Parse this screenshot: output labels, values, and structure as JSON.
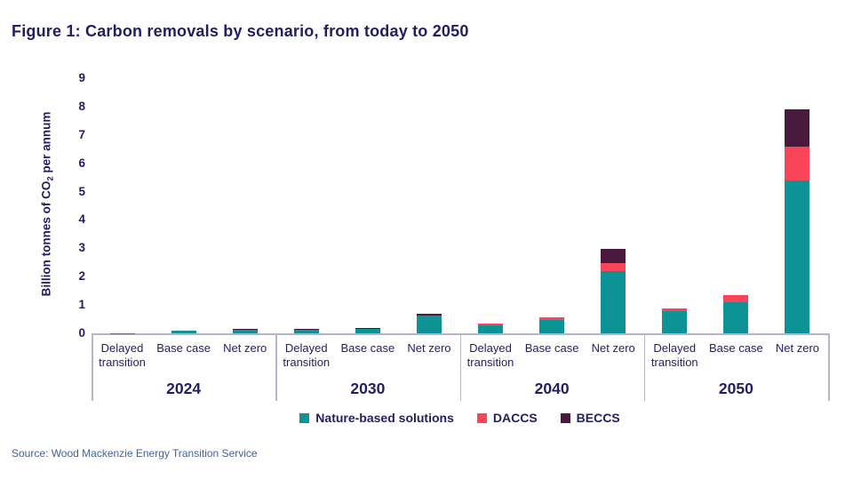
{
  "page": {
    "title": "Figure 1: Carbon removals by scenario, from today to 2050",
    "source": "Source: Wood Mackenzie Energy Transition Service"
  },
  "colors": {
    "navy": "#211e62",
    "axis_line": "#b4b4cc",
    "source_text": "#41629e",
    "nbs": "#0d9396",
    "daccs": "#f9455a",
    "beccs": "#4a1a3e"
  },
  "chart_data": {
    "type": "bar",
    "stacked": true,
    "title": "Figure 1: Carbon removals by scenario, from today to 2050",
    "ylabel": "Billion tonnes of CO2 per annum",
    "ylabel_parts": {
      "pre": "Billion tonnes of CO",
      "sub": "2",
      "post": " per annum"
    },
    "ylim": [
      0,
      9
    ],
    "yticks": [
      0,
      1,
      2,
      3,
      4,
      5,
      6,
      7,
      8,
      9
    ],
    "grid": false,
    "legend_position": "bottom",
    "values_unit": "billion tonnes of CO2 per annum",
    "series": [
      {
        "key": "nbs",
        "name": "Nature-based solutions",
        "color": "#0d9396"
      },
      {
        "key": "daccs",
        "name": "DACCS",
        "color": "#f9455a"
      },
      {
        "key": "beccs",
        "name": "BECCS",
        "color": "#4a1a3e"
      }
    ],
    "scenarios": [
      "Delayed transition",
      "Base case",
      "Net zero"
    ],
    "groups": [
      {
        "year": "2024",
        "bars": [
          {
            "scenario": "Delayed transition",
            "values": [
              0.01,
              0,
              0
            ]
          },
          {
            "scenario": "Base case",
            "values": [
              0.08,
              0,
              0
            ]
          },
          {
            "scenario": "Net zero",
            "values": [
              0.13,
              0,
              0.03
            ]
          }
        ]
      },
      {
        "year": "2030",
        "bars": [
          {
            "scenario": "Delayed transition",
            "values": [
              0.12,
              0,
              0.03
            ]
          },
          {
            "scenario": "Base case",
            "values": [
              0.15,
              0,
              0.04
            ]
          },
          {
            "scenario": "Net zero",
            "values": [
              0.63,
              0,
              0.07
            ]
          }
        ]
      },
      {
        "year": "2040",
        "bars": [
          {
            "scenario": "Delayed transition",
            "values": [
              0.27,
              0.08,
              0
            ]
          },
          {
            "scenario": "Base case",
            "values": [
              0.48,
              0.1,
              0
            ]
          },
          {
            "scenario": "Net zero",
            "values": [
              2.2,
              0.28,
              0.5
            ]
          }
        ]
      },
      {
        "year": "2050",
        "bars": [
          {
            "scenario": "Delayed transition",
            "values": [
              0.78,
              0.09,
              0
            ]
          },
          {
            "scenario": "Base case",
            "values": [
              1.1,
              0.25,
              0
            ]
          },
          {
            "scenario": "Net zero",
            "values": [
              5.4,
              1.2,
              1.3
            ]
          }
        ]
      }
    ]
  }
}
